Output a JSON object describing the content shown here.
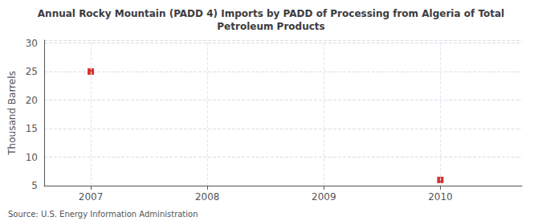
{
  "chart_data": {
    "type": "scatter",
    "title": "Annual Rocky Mountain (PADD 4) Imports by PADD of Processing from Algeria of Total\nPetroleum Products",
    "ylabel": "Thousand Barrels",
    "annotations": [
      "Source: U.S. Energy Information Administration"
    ],
    "x": [
      2007,
      2010
    ],
    "values": [
      25,
      6
    ],
    "color": "#cc0000",
    "marker": "square",
    "xlim": [
      2006.6,
      2010.7
    ],
    "ylim": [
      5,
      30.5
    ],
    "xticks": [
      2007,
      2008,
      2009,
      2010
    ],
    "yticks": [
      5,
      10,
      15,
      20,
      25,
      30
    ],
    "grid": true
  }
}
